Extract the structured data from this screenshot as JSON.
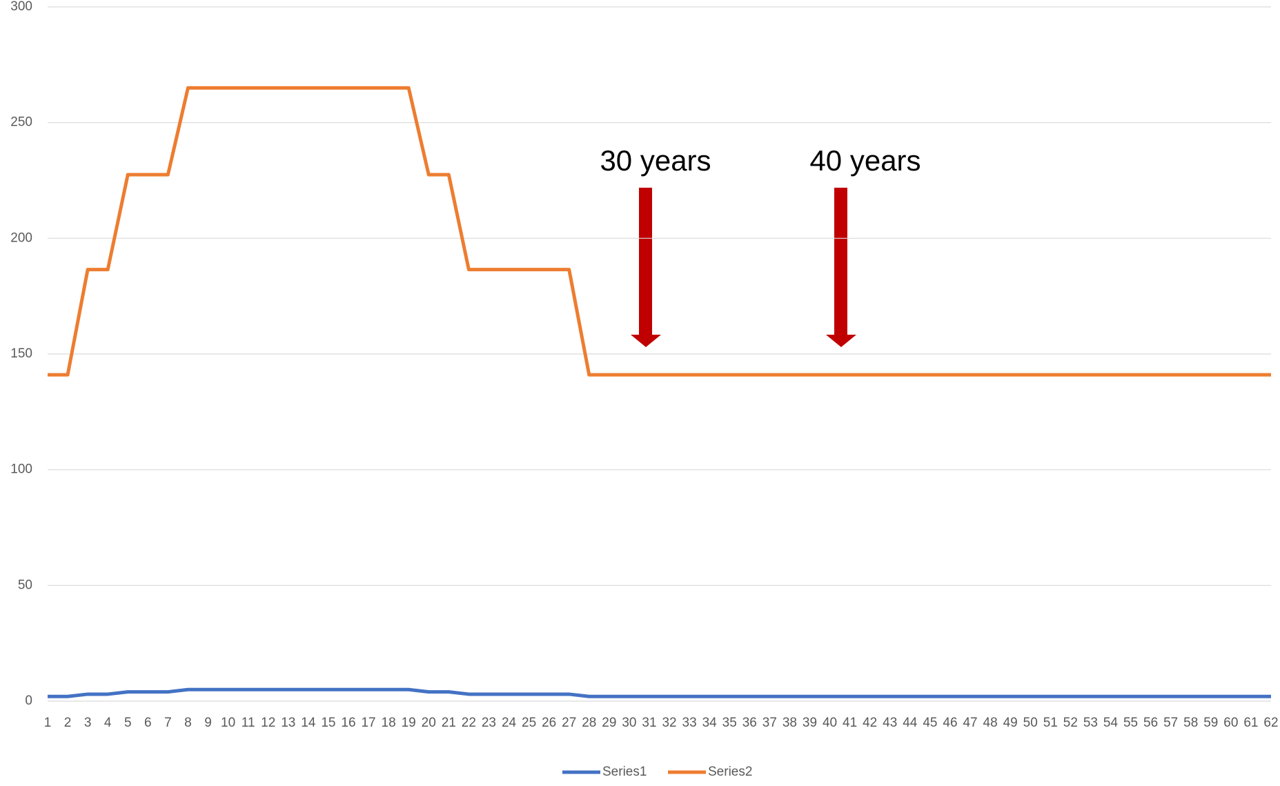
{
  "chart_data": {
    "type": "line",
    "categories": [
      1,
      2,
      3,
      4,
      5,
      6,
      7,
      8,
      9,
      10,
      11,
      12,
      13,
      14,
      15,
      16,
      17,
      18,
      19,
      20,
      21,
      22,
      23,
      24,
      25,
      26,
      27,
      28,
      29,
      30,
      31,
      32,
      33,
      34,
      35,
      36,
      37,
      38,
      39,
      40,
      41,
      42,
      43,
      44,
      45,
      46,
      47,
      48,
      49,
      50,
      51,
      52,
      53,
      54,
      55,
      56,
      57,
      58,
      59,
      60,
      61,
      62
    ],
    "series": [
      {
        "name": "Series1",
        "color": "#4472c4",
        "values": [
          2,
          2,
          3,
          3,
          4,
          4,
          4,
          5,
          5,
          5,
          5,
          5,
          5,
          5,
          5,
          5,
          5,
          5,
          5,
          4,
          4,
          3,
          3,
          3,
          3,
          3,
          3,
          2,
          2,
          2,
          2,
          2,
          2,
          2,
          2,
          2,
          2,
          2,
          2,
          2,
          2,
          2,
          2,
          2,
          2,
          2,
          2,
          2,
          2,
          2,
          2,
          2,
          2,
          2,
          2,
          2,
          2,
          2,
          2,
          2,
          2,
          2
        ]
      },
      {
        "name": "Series2",
        "color": "#ed7d31",
        "values": [
          141,
          141,
          186.5,
          186.5,
          227.5,
          227.5,
          227.5,
          265,
          265,
          265,
          265,
          265,
          265,
          265,
          265,
          265,
          265,
          265,
          265,
          227.5,
          227.5,
          186.5,
          186.5,
          186.5,
          186.5,
          186.5,
          186.5,
          141,
          141,
          141,
          141,
          141,
          141,
          141,
          141,
          141,
          141,
          141,
          141,
          141,
          141,
          141,
          141,
          141,
          141,
          141,
          141,
          141,
          141,
          141,
          141,
          141,
          141,
          141,
          141,
          141,
          141,
          141,
          141,
          141,
          141,
          141
        ]
      }
    ],
    "ylim": [
      0,
      300
    ],
    "yticks": [
      0,
      50,
      100,
      150,
      200,
      250,
      300
    ],
    "grid": true,
    "legend": "bottom",
    "annotations": [
      "30 years",
      "40 years"
    ]
  }
}
